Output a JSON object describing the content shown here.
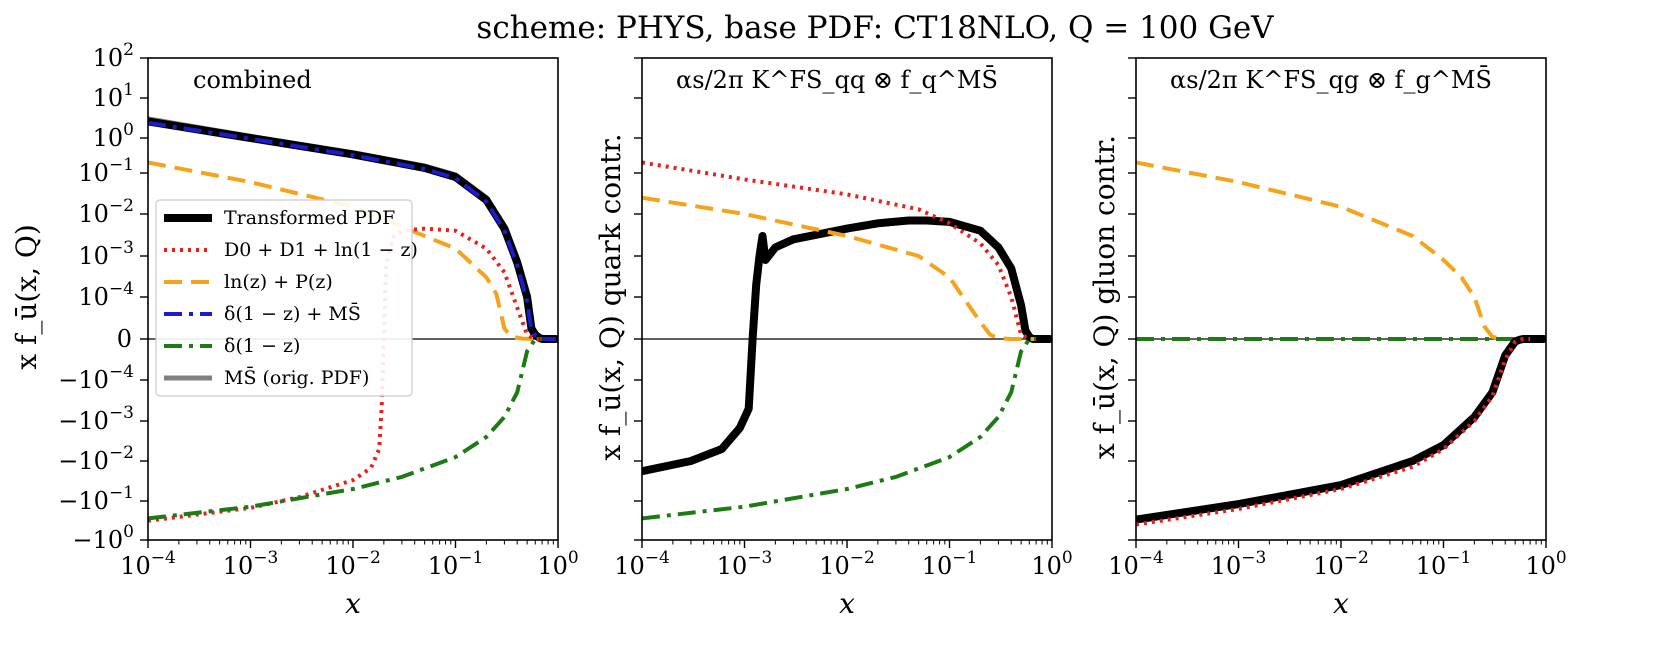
{
  "figure_title": "scheme: PHYS, base PDF: CT18NLO, Q = 100 GeV",
  "colors": {
    "transformed": "#000000",
    "d0d1": "#e8201c",
    "lnz": "#f5a31b",
    "delta_msbar": "#1c1ccc",
    "delta": "#1e7a14",
    "msbar": "#808080",
    "frame": "#000000"
  },
  "legend": {
    "items": [
      {
        "label": "Transformed PDF",
        "key": "transformed"
      },
      {
        "label": "D0 + D1 + ln(1 − z)",
        "key": "d0d1"
      },
      {
        "label": "ln(z) + P(z)",
        "key": "lnz"
      },
      {
        "label": "δ(1 − z) + MS̄",
        "key": "delta_msbar"
      },
      {
        "label": "δ(1 − z)",
        "key": "delta"
      },
      {
        "label": "MS̄ (orig. PDF)",
        "key": "msbar"
      }
    ]
  },
  "chart_data": [
    {
      "type": "line",
      "panel": "combined",
      "annotation": "combined",
      "xlabel": "x",
      "ylabel": "x f_ū(x, Q)",
      "xscale": "log",
      "yscale": "symlog",
      "xlim": [
        0.0001,
        1
      ],
      "ylim": [
        -1,
        100
      ],
      "xticks": [
        "10^-4",
        "10^-3",
        "10^-2",
        "10^-1",
        "10^0"
      ],
      "yticks": [
        "10^2",
        "10^1",
        "10^0",
        "10^-1",
        "10^-2",
        "10^-3",
        "10^-4",
        "0",
        "-10^-4",
        "-10^-3",
        "-10^-2",
        "-10^-1",
        "-10^0"
      ],
      "legend_position": "center-left",
      "series": [
        {
          "key": "msbar",
          "name": "MS̄ (orig. PDF)",
          "x": [
            0.0001,
            0.001,
            0.01,
            0.05,
            0.1,
            0.2,
            0.3,
            0.4,
            0.5,
            0.55,
            0.6,
            0.65,
            0.7,
            0.8,
            0.95
          ],
          "y": [
            3,
            1.1,
            0.38,
            0.16,
            0.09,
            0.025,
            0.005,
            0.0008,
            0.00012,
            3e-05,
            1.2e-05,
            4e-06,
            0,
            0,
            0
          ]
        },
        {
          "key": "transformed",
          "name": "Transformed PDF",
          "x": [
            0.0001,
            0.001,
            0.01,
            0.05,
            0.1,
            0.2,
            0.3,
            0.4,
            0.5,
            0.55,
            0.6,
            0.65,
            0.7,
            0.8,
            0.95
          ],
          "y": [
            2.6,
            1.0,
            0.34,
            0.14,
            0.08,
            0.022,
            0.0045,
            0.0007,
            0.0001,
            2.5e-05,
            1e-05,
            3.5e-06,
            0,
            0,
            0
          ]
        },
        {
          "key": "delta_msbar",
          "name": "δ(1 − z) + MS̄",
          "x": [
            0.0001,
            0.001,
            0.01,
            0.05,
            0.1,
            0.2,
            0.3,
            0.4,
            0.5,
            0.55,
            0.6,
            0.65,
            0.7,
            0.8,
            0.95
          ],
          "y": [
            2.4,
            0.95,
            0.32,
            0.13,
            0.075,
            0.02,
            0.004,
            0.0006,
            9e-05,
            2e-05,
            8e-06,
            3e-06,
            0,
            0,
            0
          ]
        },
        {
          "key": "lnz",
          "name": "ln(z) + P(z)",
          "x": [
            0.0001,
            0.001,
            0.01,
            0.1,
            0.2,
            0.25,
            0.3,
            0.35,
            0.45,
            0.6,
            0.7
          ],
          "y": [
            0.2,
            0.06,
            0.015,
            0.0015,
            0.0003,
            0.00012,
            2.5e-05,
            6e-06,
            1e-06,
            0,
            0
          ]
        },
        {
          "key": "d0d1",
          "name": "D0 + D1 + ln(1 − z)",
          "x": [
            0.0001,
            0.001,
            0.003,
            0.01,
            0.015,
            0.018,
            0.019,
            0.02,
            0.021,
            0.022,
            0.025,
            0.03,
            0.05,
            0.1,
            0.2,
            0.3,
            0.5,
            0.6,
            0.7
          ],
          "y": [
            -0.32,
            -0.15,
            -0.08,
            -0.03,
            -0.015,
            -0.005,
            -0.0005,
            0,
            0.0005,
            0.001,
            0.003,
            0.004,
            0.0045,
            0.004,
            0.0015,
            0.0004,
            1e-05,
            0,
            0
          ]
        },
        {
          "key": "delta",
          "name": "δ(1 − z)",
          "x": [
            0.0001,
            0.001,
            0.01,
            0.03,
            0.1,
            0.2,
            0.3,
            0.4,
            0.5,
            0.6,
            0.7
          ],
          "y": [
            -0.28,
            -0.14,
            -0.05,
            -0.025,
            -0.008,
            -0.0025,
            -0.0008,
            -0.0002,
            -3e-05,
            0,
            0
          ]
        }
      ]
    },
    {
      "type": "line",
      "panel": "quark",
      "annotation": "αs/2π K^FS_qq ⊗ f_q^MS̄",
      "xlabel": "x",
      "ylabel": "x f_ū(x, Q) quark contr.",
      "xscale": "log",
      "yscale": "symlog",
      "xlim": [
        0.0001,
        1
      ],
      "ylim": [
        -1,
        100
      ],
      "xticks": [
        "10^-4",
        "10^-3",
        "10^-2",
        "10^-1",
        "10^0"
      ],
      "yticks": [],
      "series": [
        {
          "key": "transformed",
          "name": "Transformed PDF",
          "x": [
            0.0001,
            0.0003,
            0.0006,
            0.0009,
            0.0011,
            0.0012,
            0.0013,
            0.0014,
            0.0015,
            0.0016,
            0.002,
            0.003,
            0.005,
            0.01,
            0.02,
            0.04,
            0.06,
            0.1,
            0.2,
            0.3,
            0.4,
            0.5,
            0.55,
            0.6,
            0.65,
            0.7,
            0.8,
            0.95
          ],
          "y": [
            -0.018,
            -0.01,
            -0.005,
            -0.0015,
            -0.0005,
            0,
            0.0002,
            0.001,
            0.003,
            0.0008,
            0.0016,
            0.0025,
            0.0032,
            0.0045,
            0.006,
            0.007,
            0.007,
            0.0065,
            0.004,
            0.0016,
            0.0005,
            8e-05,
            2e-05,
            5e-06,
            0,
            0,
            0,
            0
          ]
        },
        {
          "key": "d0d1",
          "name": "D0 + D1 + ln(1 − z)",
          "x": [
            0.0001,
            0.001,
            0.01,
            0.05,
            0.1,
            0.2,
            0.3,
            0.4,
            0.5,
            0.6,
            0.7
          ],
          "y": [
            0.2,
            0.07,
            0.03,
            0.013,
            0.006,
            0.002,
            0.0006,
            0.0001,
            1e-05,
            0,
            0
          ]
        },
        {
          "key": "lnz",
          "name": "ln(z) + P(z)",
          "x": [
            0.0001,
            0.001,
            0.01,
            0.05,
            0.1,
            0.2,
            0.25,
            0.3,
            0.4,
            0.5,
            0.7
          ],
          "y": [
            0.025,
            0.01,
            0.003,
            0.001,
            0.0003,
            4e-05,
            1e-05,
            2e-06,
            0,
            0,
            0
          ]
        },
        {
          "key": "delta",
          "name": "δ(1 − z)",
          "x": [
            0.0001,
            0.001,
            0.01,
            0.03,
            0.1,
            0.2,
            0.3,
            0.4,
            0.5,
            0.6,
            0.7
          ],
          "y": [
            -0.28,
            -0.14,
            -0.05,
            -0.025,
            -0.008,
            -0.0025,
            -0.0008,
            -0.0002,
            -3e-05,
            0,
            0
          ]
        }
      ]
    },
    {
      "type": "line",
      "panel": "gluon",
      "annotation": "αs/2π K^FS_qg ⊗ f_g^MS̄",
      "xlabel": "x",
      "ylabel": "x f_ū(x, Q) gluon contr.",
      "xscale": "log",
      "yscale": "symlog",
      "xlim": [
        0.0001,
        1
      ],
      "ylim": [
        -1,
        100
      ],
      "xticks": [
        "10^-4",
        "10^-3",
        "10^-2",
        "10^-1",
        "10^0"
      ],
      "yticks": [],
      "series": [
        {
          "key": "lnz",
          "name": "ln(z) + P(z)",
          "x": [
            0.0001,
            0.001,
            0.01,
            0.05,
            0.1,
            0.15,
            0.2,
            0.25,
            0.3,
            0.4,
            0.5,
            0.7
          ],
          "y": [
            0.2,
            0.06,
            0.015,
            0.003,
            0.0008,
            0.0003,
            0.0001,
            3e-05,
            5e-06,
            0,
            0,
            0
          ]
        },
        {
          "key": "delta",
          "name": "δ(1 − z)",
          "x": [
            0.0001,
            1
          ],
          "y": [
            0,
            0
          ]
        },
        {
          "key": "transformed",
          "name": "Transformed PDF",
          "x": [
            0.0001,
            0.001,
            0.01,
            0.05,
            0.1,
            0.2,
            0.3,
            0.4,
            0.5,
            0.55,
            0.6,
            0.65,
            0.7,
            0.95
          ],
          "y": [
            -0.3,
            -0.12,
            -0.04,
            -0.01,
            -0.004,
            -0.0008,
            -0.0002,
            -4e-05,
            -6e-06,
            -2e-06,
            0,
            0,
            0,
            0
          ]
        },
        {
          "key": "d0d1",
          "name": "D0 + D1 + ln(1 − z)",
          "x": [
            0.0001,
            0.001,
            0.01,
            0.05,
            0.1,
            0.2,
            0.3,
            0.4,
            0.5,
            0.55,
            0.6,
            0.7
          ],
          "y": [
            -0.4,
            -0.16,
            -0.05,
            -0.014,
            -0.005,
            -0.001,
            -0.00025,
            -5e-05,
            -7e-06,
            -2e-06,
            0,
            0
          ]
        }
      ]
    }
  ]
}
